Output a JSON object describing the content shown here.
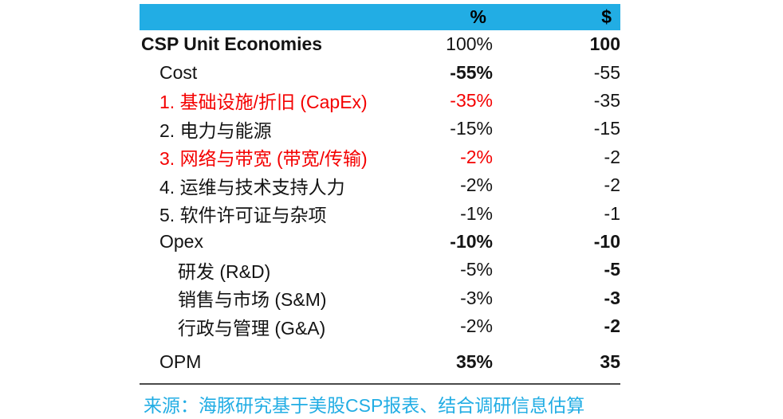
{
  "table": {
    "header": {
      "pct": "%",
      "dollar": "$"
    },
    "rows": [
      {
        "label": "CSP Unit Economies",
        "pct": "100%",
        "dollar": "100"
      },
      {
        "label": "Cost",
        "pct": "-55%",
        "dollar": "-55"
      },
      {
        "label": "1. 基础设施/折旧 (CapEx)",
        "pct": "-35%",
        "dollar": "-35"
      },
      {
        "label": "2. 电力与能源",
        "pct": "-15%",
        "dollar": "-15"
      },
      {
        "label": "3. 网络与带宽 (带宽/传输)",
        "pct": "-2%",
        "dollar": "-2"
      },
      {
        "label": "4. 运维与技术支持人力",
        "pct": "-2%",
        "dollar": "-2"
      },
      {
        "label": "5. 软件许可证与杂项",
        "pct": "-1%",
        "dollar": "-1"
      },
      {
        "label": "Opex",
        "pct": "-10%",
        "dollar": "-10"
      },
      {
        "label": "研发 (R&D)",
        "pct": "-5%",
        "dollar": "-5"
      },
      {
        "label": "销售与市场 (S&M)",
        "pct": "-3%",
        "dollar": "-3"
      },
      {
        "label": "行政与管理 (G&A)",
        "pct": "-2%",
        "dollar": "-2"
      },
      {
        "label": "OPM",
        "pct": "35%",
        "dollar": "35"
      }
    ],
    "footer": "来源：海豚研究基于美股CSP报表、结合调研信息估算"
  },
  "colors": {
    "accent_cyan": "#22ADE4",
    "highlight_red": "#F40000",
    "text": "#141414",
    "divider": "#4A4A4A"
  },
  "chart_data": {
    "type": "table",
    "title": "CSP Unit Economies",
    "columns": [
      "item",
      "%",
      "$"
    ],
    "rows": [
      [
        "CSP Unit Economies",
        "100%",
        100
      ],
      [
        "Cost",
        "-55%",
        -55
      ],
      [
        "1. 基础设施/折旧 (CapEx)",
        "-35%",
        -35
      ],
      [
        "2. 电力与能源",
        "-15%",
        -15
      ],
      [
        "3. 网络与带宽 (带宽/传输)",
        "-2%",
        -2
      ],
      [
        "4. 运维与技术支持人力",
        "-2%",
        -2
      ],
      [
        "5. 软件许可证与杂项",
        "-1%",
        -1
      ],
      [
        "Opex",
        "-10%",
        -10
      ],
      [
        "研发 (R&D)",
        "-5%",
        -5
      ],
      [
        "销售与市场 (S&M)",
        "-3%",
        -3
      ],
      [
        "行政与管理 (G&A)",
        "-2%",
        -2
      ],
      [
        "OPM",
        "35%",
        35
      ]
    ],
    "highlighted_rows_red": [
      2,
      4
    ],
    "source_note": "来源：海豚研究基于美股CSP报表、结合调研信息估算"
  }
}
